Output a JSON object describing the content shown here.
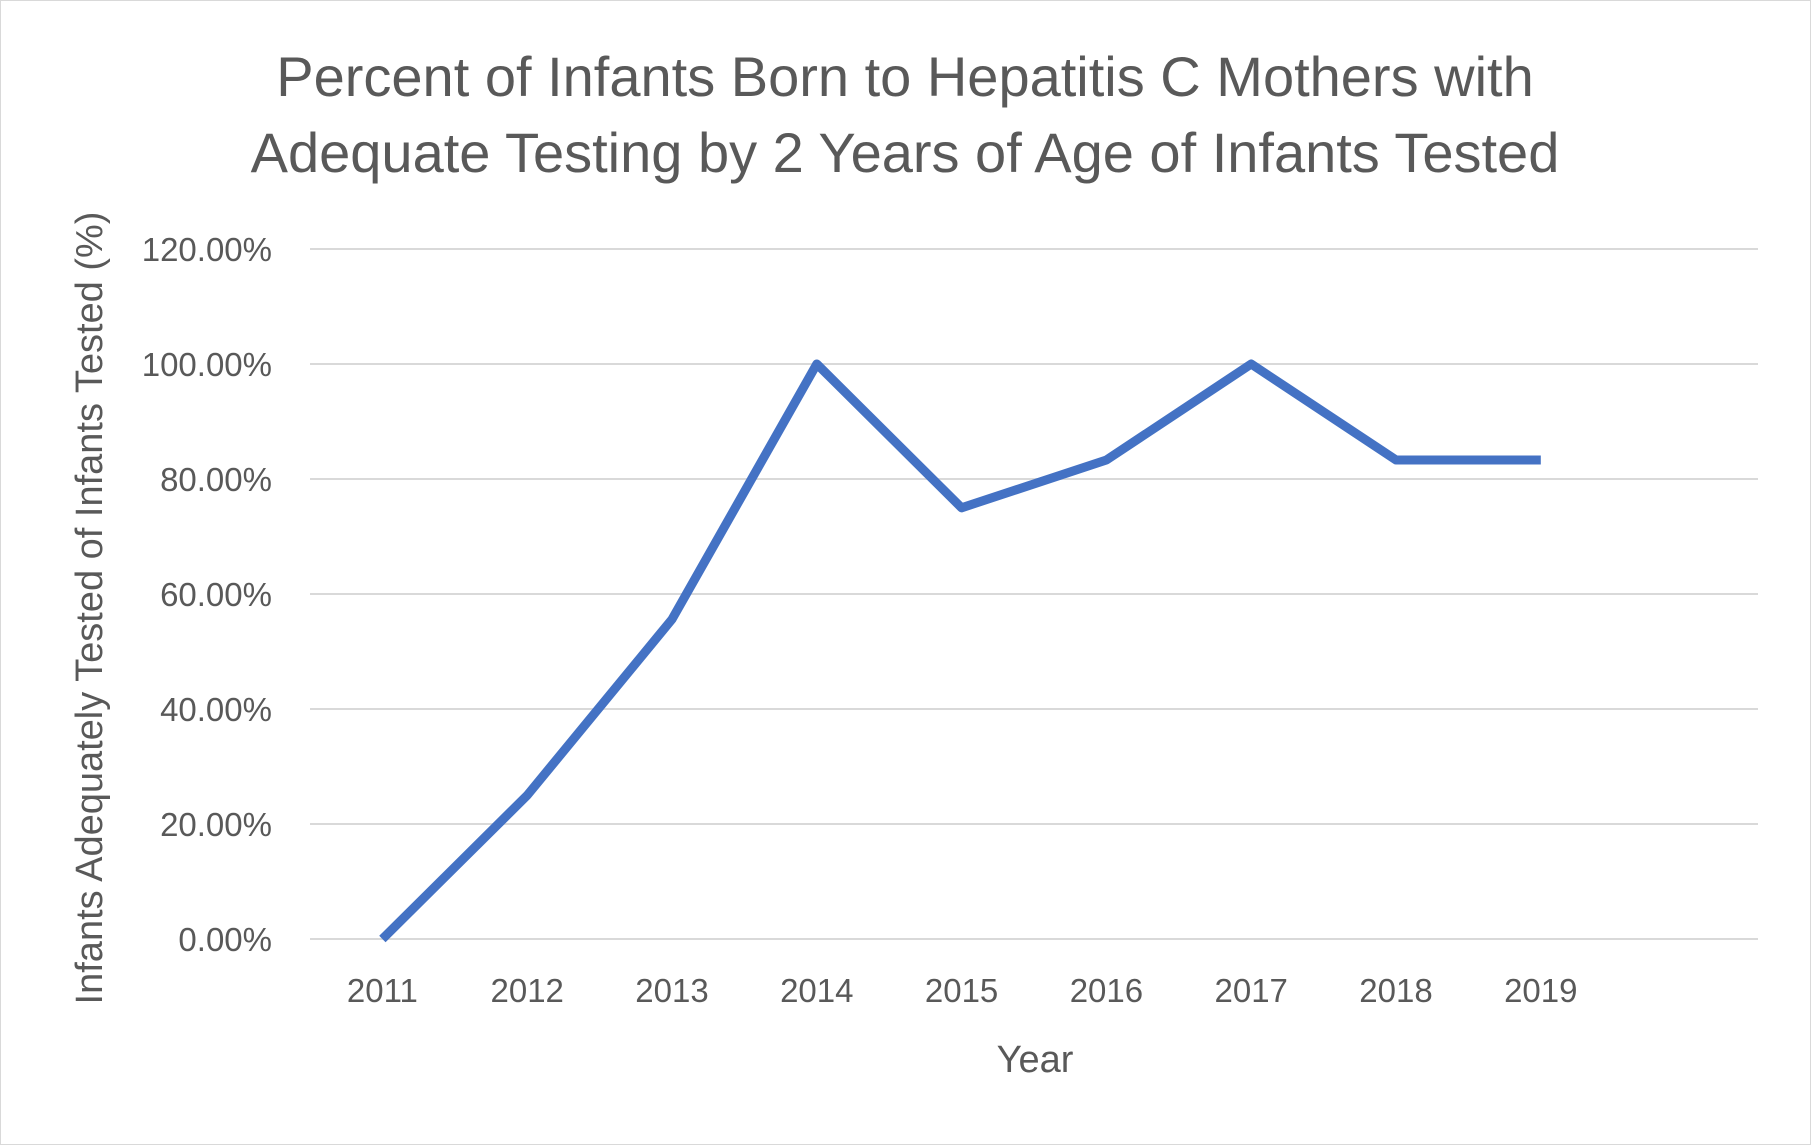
{
  "chart_data": {
    "type": "line",
    "title_lines": [
      "Percent of Infants Born to Hepatitis C Mothers with",
      "Adequate Testing by 2 Years of Age of Infants Tested"
    ],
    "xlabel": "Year",
    "ylabel": "Infants Adequately Tested of Infants Tested (%)",
    "categories": [
      "2011",
      "2012",
      "2013",
      "2014",
      "2015",
      "2016",
      "2017",
      "2018",
      "2019"
    ],
    "series": [
      {
        "values": [
          0,
          25,
          55.6,
          100,
          75,
          83.3,
          100,
          83.3,
          83.3
        ],
        "color": "#4472c4"
      }
    ],
    "ylim": [
      0,
      120
    ],
    "y_ticks": [
      0,
      20,
      40,
      60,
      80,
      100,
      120
    ],
    "y_tick_labels": [
      "0.00%",
      "20.00%",
      "40.00%",
      "60.00%",
      "80.00%",
      "100.00%",
      "120.00%"
    ],
    "grid": true,
    "legend": "none"
  }
}
